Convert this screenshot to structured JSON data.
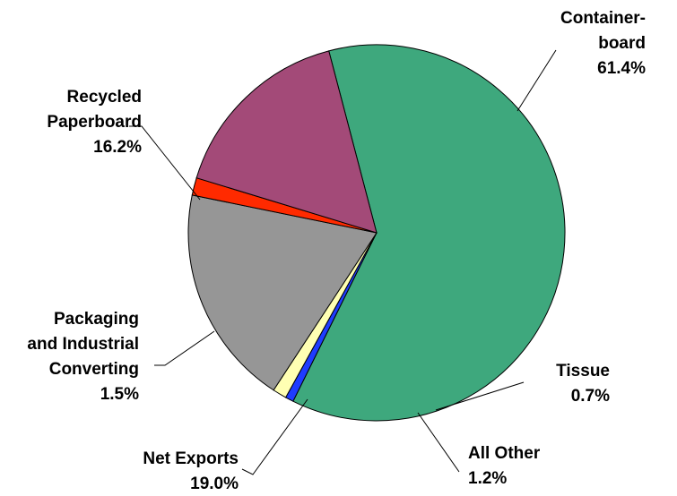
{
  "chart_data": {
    "type": "pie",
    "title": "",
    "slices": [
      {
        "lines": [
          "Container-",
          "board"
        ],
        "pct_label": "61.4%",
        "value": 61.4,
        "color": "#3ea87d"
      },
      {
        "lines": [
          "Tissue"
        ],
        "pct_label": "0.7%",
        "value": 0.7,
        "color": "#1f3cff"
      },
      {
        "lines": [
          "All Other"
        ],
        "pct_label": "1.2%",
        "value": 1.2,
        "color": "#ffffb3"
      },
      {
        "lines": [
          "Net Exports"
        ],
        "pct_label": "19.0%",
        "value": 19.0,
        "color": "#969696"
      },
      {
        "lines": [
          "Packaging",
          "and Industrial",
          "Converting"
        ],
        "pct_label": "1.5%",
        "value": 1.5,
        "color": "#ff2a00"
      },
      {
        "lines": [
          "Recycled",
          "Paperboard"
        ],
        "pct_label": "16.2%",
        "value": 16.2,
        "color": "#a34a78"
      }
    ]
  }
}
